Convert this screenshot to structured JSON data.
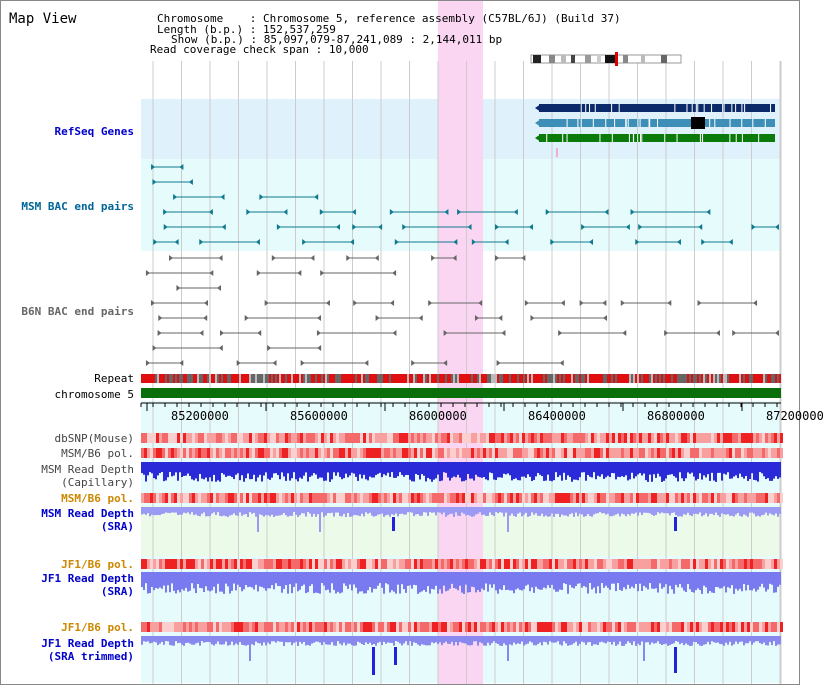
{
  "title": "Map View",
  "header": {
    "chromosome_key": "Chromosome",
    "chromosome_value": "Chromosome 5, reference assembly (C57BL/6J) (Build 37)",
    "length_key": "Length (b.p.)",
    "length_value": "152,537,259",
    "show_key": "Show (b.p.)",
    "show_value": "85,097,079-87,241,089 : 2,144,011 bp",
    "coverage_key": "Read coverage check span",
    "coverage_value": "10,000"
  },
  "tracks": {
    "refseq": "RefSeq Genes",
    "msm_bac": "MSM BAC end pairs",
    "b6n_bac": "B6N BAC end pairs",
    "repeat": "Repeat",
    "chromosome": "chromosome 5",
    "dbsnp": "dbSNP(Mouse)",
    "msm_b6_pol_1": "MSM/B6 pol.",
    "msm_read_depth_cap_1": "MSM Read Depth",
    "msm_read_depth_cap_2": "(Capillary)",
    "msm_b6_pol_2": "MSM/B6 pol.",
    "msm_read_depth_sra_1": "MSM Read Depth",
    "msm_read_depth_sra_2": "(SRA)",
    "jf1_b6_pol_1": "JF1/B6 pol.",
    "jf1_read_depth_sra_1": "JF1 Read Depth",
    "jf1_read_depth_sra_2": "(SRA)",
    "jf1_b6_pol_2": "JF1/B6 pol.",
    "jf1_read_depth_trim_1": "JF1 Read Depth",
    "jf1_read_depth_trim_2": "(SRA trimmed)"
  },
  "axis": {
    "ticks": [
      "85200000",
      "85600000",
      "86000000",
      "86400000",
      "86800000",
      "87200000"
    ]
  },
  "colors": {
    "refseq_label": "#0000cc",
    "msm_bac_label": "#006699",
    "b6n_bac_label": "#666666",
    "msm_pol_label": "#cc8800",
    "jf1_pol_label": "#cc8800",
    "depth_label": "#0000cc",
    "refseq_bg": "#dff1fb",
    "msm_bg": "#e6fbfb",
    "highlight": "#fbd6f2"
  }
}
